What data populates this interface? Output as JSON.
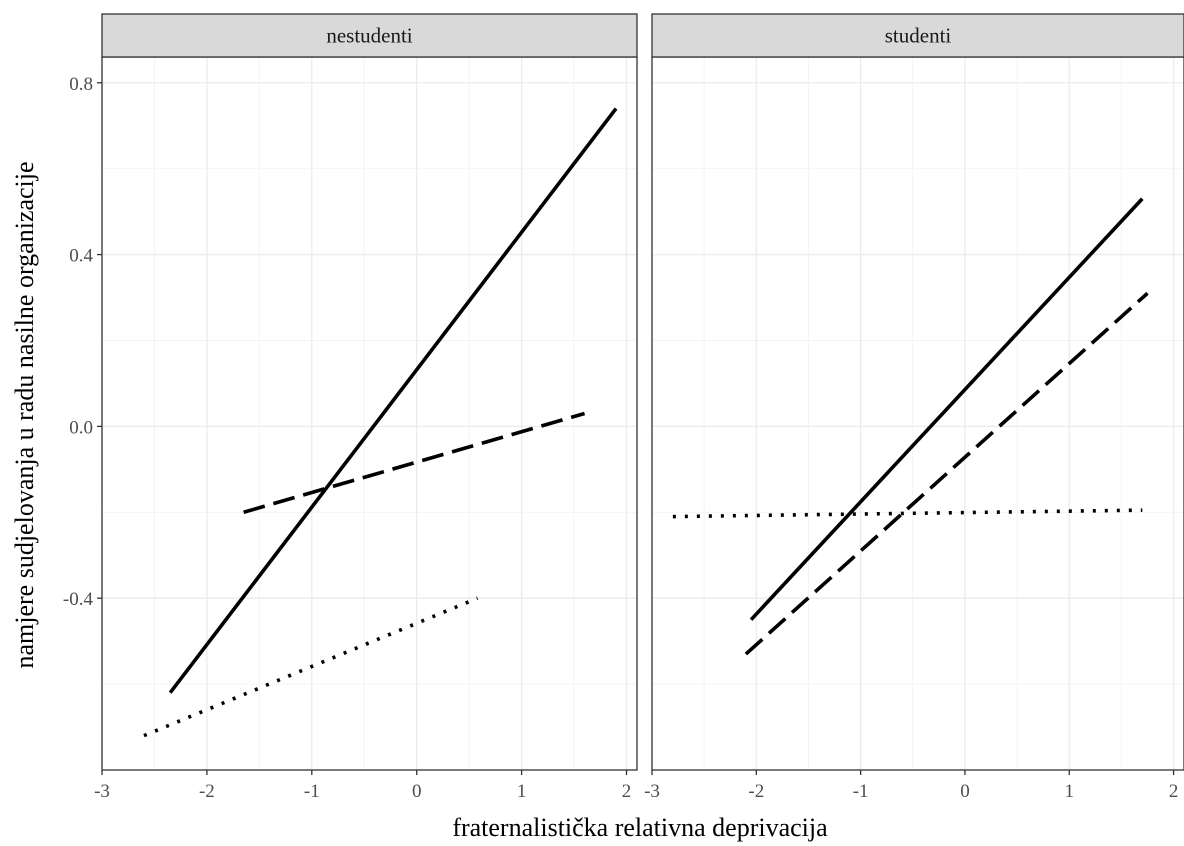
{
  "chart_data": {
    "type": "line",
    "xlabel": "fraternalistička relativna deprivacija",
    "ylabel": "namjere sudjelovanja u radu nasilne organizacije",
    "xlim": [
      -3,
      2.1
    ],
    "ylim": [
      -0.8,
      0.86
    ],
    "x_ticks": [
      "-3",
      "-2",
      "-1",
      "0",
      "1",
      "2"
    ],
    "y_ticks": [
      "-0.4",
      "0.0",
      "0.4",
      "0.8"
    ],
    "grid": true,
    "legend": "none",
    "panels": [
      {
        "label": "nestudenti",
        "series": [
          {
            "style": "solid",
            "x": [
              -2.35,
              1.9
            ],
            "y": [
              -0.62,
              0.74
            ]
          },
          {
            "style": "dashed",
            "x": [
              -1.65,
              1.6
            ],
            "y": [
              -0.2,
              0.03
            ]
          },
          {
            "style": "dotted",
            "x": [
              -2.6,
              0.58
            ],
            "y": [
              -0.72,
              -0.4
            ]
          }
        ]
      },
      {
        "label": "studenti",
        "series": [
          {
            "style": "solid",
            "x": [
              -2.05,
              1.7
            ],
            "y": [
              -0.45,
              0.53
            ]
          },
          {
            "style": "dashed",
            "x": [
              -2.1,
              1.75
            ],
            "y": [
              -0.53,
              0.31
            ]
          },
          {
            "style": "dotted",
            "x": [
              -2.8,
              1.7
            ],
            "y": [
              -0.21,
              -0.195
            ]
          }
        ]
      }
    ]
  },
  "colors": {
    "panel_border": "#333333",
    "strip_fill": "#d9d9d9",
    "grid_major": "#ebebeb",
    "grid_minor": "#f4f4f4",
    "line": "#000000"
  }
}
